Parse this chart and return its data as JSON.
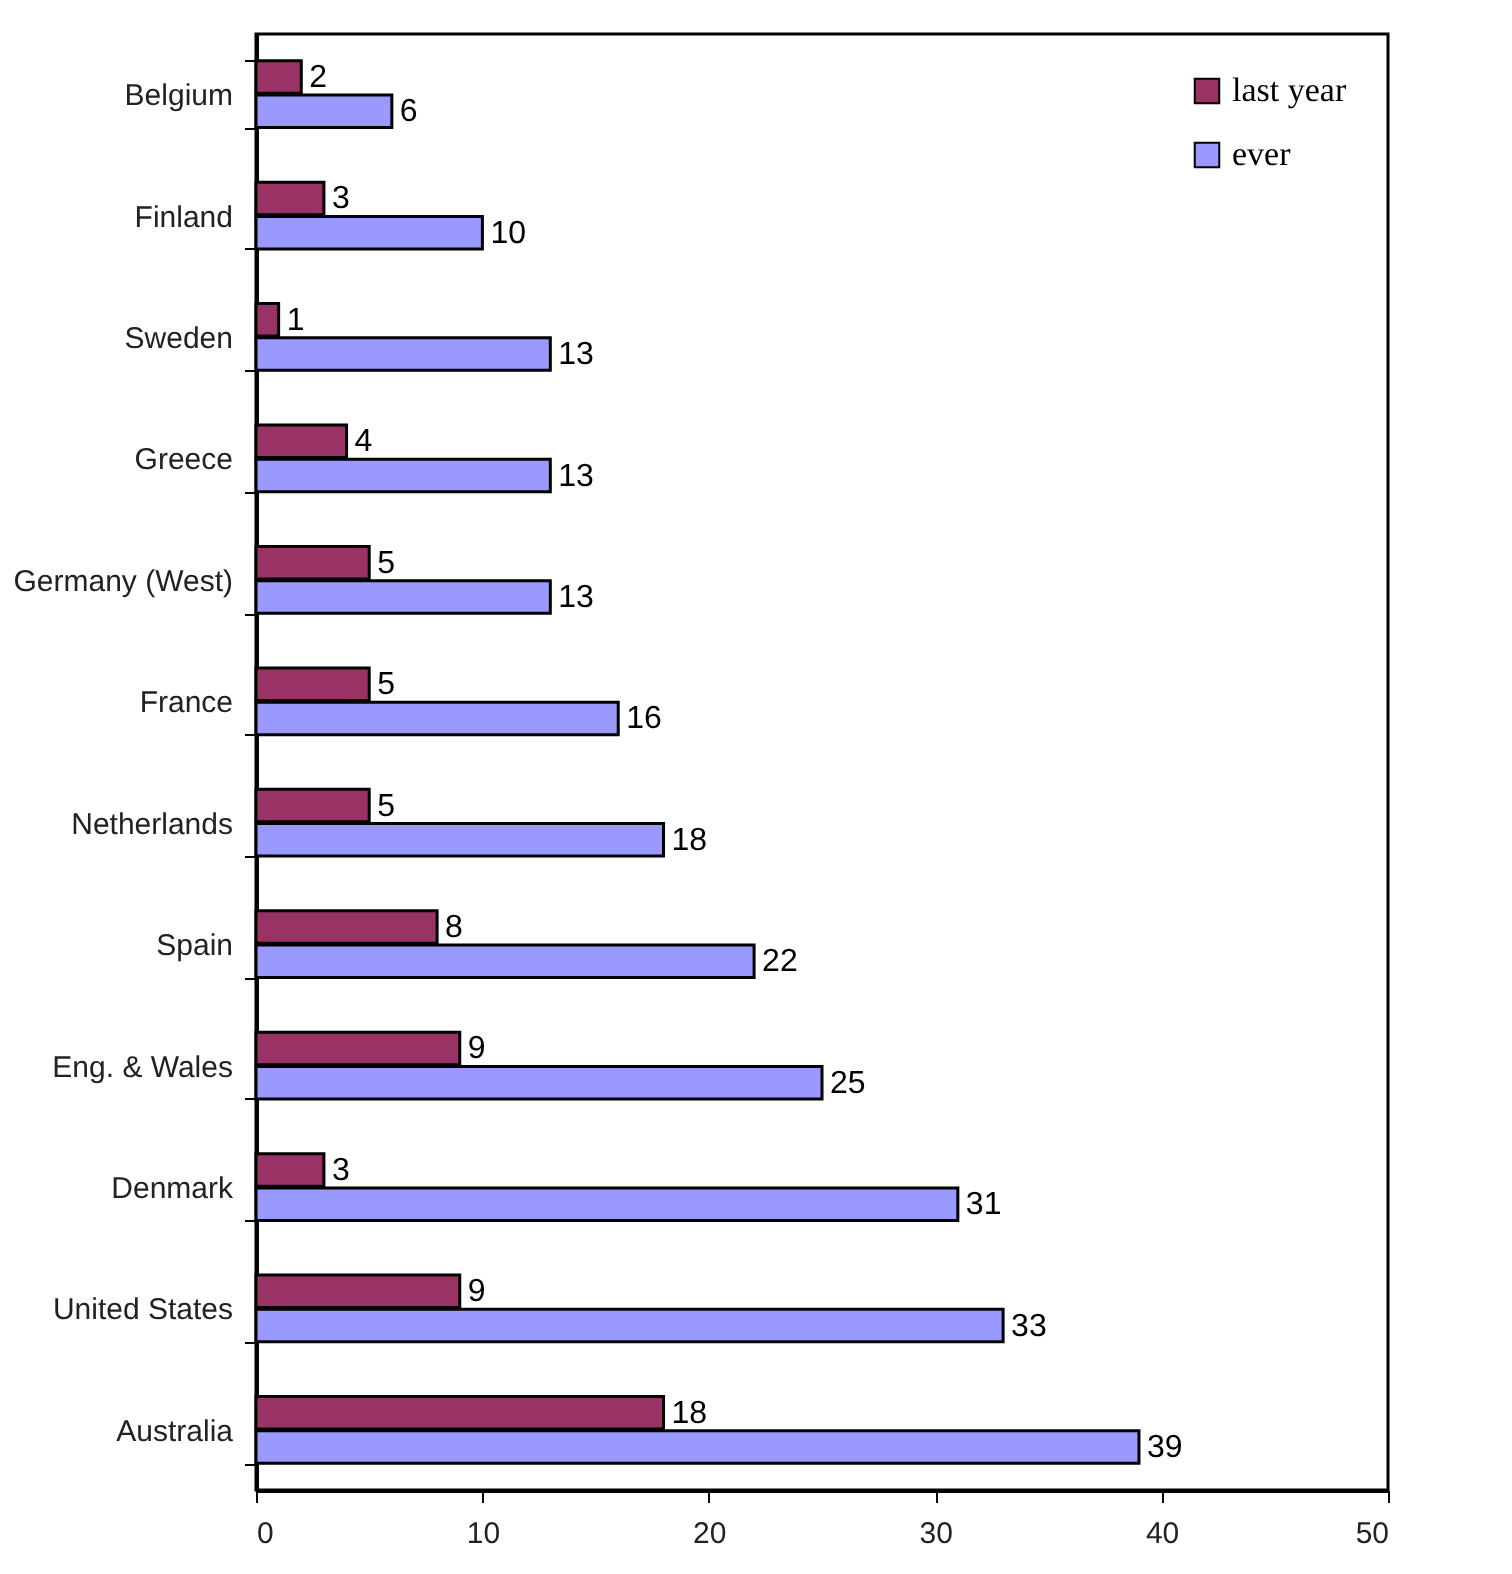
{
  "chart_data": {
    "type": "bar",
    "orientation": "horizontal",
    "categories": [
      "Belgium",
      "Finland",
      "Sweden",
      "Greece",
      "Germany (West)",
      "France",
      "Netherlands",
      "Spain",
      "Eng. & Wales",
      "Denmark",
      "United States",
      "Australia"
    ],
    "series": [
      {
        "name": "last year",
        "color": "#993366",
        "values": [
          2,
          3,
          1,
          4,
          5,
          5,
          5,
          8,
          9,
          3,
          9,
          18
        ]
      },
      {
        "name": "ever",
        "color": "#9999ff",
        "values": [
          6,
          10,
          13,
          13,
          13,
          16,
          18,
          22,
          25,
          31,
          33,
          39
        ]
      }
    ],
    "xlim": [
      0,
      50
    ],
    "xticks": [
      0,
      10,
      20,
      30,
      40,
      50
    ],
    "data_labels": true,
    "legend": "top right",
    "grid": false
  }
}
